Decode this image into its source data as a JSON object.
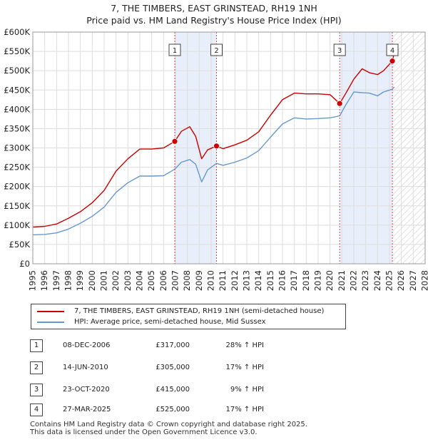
{
  "title_line1": "7, THE TIMBERS, EAST GRINSTEAD, RH19 1NH",
  "title_line2": "Price paid vs. HM Land Registry's House Price Index (HPI)",
  "colors": {
    "property": "#cc0000",
    "hpi": "#6699cc",
    "shade": "#e8effa",
    "marker_line": "#dd4444",
    "grid": "#dddddd"
  },
  "legend": {
    "property_label": "7, THE TIMBERS, EAST GRINSTEAD, RH19 1NH (semi-detached house)",
    "hpi_label": "HPI: Average price, semi-detached house, Mid Sussex"
  },
  "sales": [
    {
      "num": "1",
      "date": "08-DEC-2006",
      "price": "£317,000",
      "hpi": "28% ↑ HPI"
    },
    {
      "num": "2",
      "date": "14-JUN-2010",
      "price": "£305,000",
      "hpi": "17% ↑ HPI"
    },
    {
      "num": "3",
      "date": "23-OCT-2020",
      "price": "£415,000",
      "hpi": "9% ↑ HPI"
    },
    {
      "num": "4",
      "date": "27-MAR-2025",
      "price": "£525,000",
      "hpi": "17% ↑ HPI"
    }
  ],
  "footer_line1": "Contains HM Land Registry data © Crown copyright and database right 2025.",
  "footer_line2": "This data is licensed under the Open Government Licence v3.0.",
  "chart_data": {
    "type": "line",
    "title": "7, THE TIMBERS, EAST GRINSTEAD, RH19 1NH — Price paid vs. HM Land Registry's House Price Index (HPI)",
    "xlim": [
      1995,
      2028
    ],
    "ylim": [
      0,
      600000
    ],
    "x_ticks": [
      1995,
      1996,
      1997,
      1998,
      1999,
      2000,
      2001,
      2002,
      2003,
      2004,
      2005,
      2006,
      2007,
      2008,
      2009,
      2010,
      2011,
      2012,
      2013,
      2014,
      2015,
      2016,
      2017,
      2018,
      2019,
      2020,
      2021,
      2022,
      2023,
      2024,
      2025,
      2026,
      2027,
      2028
    ],
    "y_ticks": [
      {
        "value": 0,
        "label": "£0"
      },
      {
        "value": 50000,
        "label": "£50K"
      },
      {
        "value": 100000,
        "label": "£100K"
      },
      {
        "value": 150000,
        "label": "£150K"
      },
      {
        "value": 200000,
        "label": "£200K"
      },
      {
        "value": 250000,
        "label": "£250K"
      },
      {
        "value": 300000,
        "label": "£300K"
      },
      {
        "value": 350000,
        "label": "£350K"
      },
      {
        "value": 400000,
        "label": "£400K"
      },
      {
        "value": 450000,
        "label": "£450K"
      },
      {
        "value": 500000,
        "label": "£500K"
      },
      {
        "value": 550000,
        "label": "£550K"
      },
      {
        "value": 600000,
        "label": "£600K"
      }
    ],
    "grid": true,
    "shaded_ranges": [
      [
        2006.94,
        2010.45
      ],
      [
        2020.81,
        2025.24
      ]
    ],
    "hatched_from": 2025.24,
    "sale_markers": [
      {
        "label": "1",
        "x": 2006.94,
        "y": 317000
      },
      {
        "label": "2",
        "x": 2010.45,
        "y": 305000
      },
      {
        "label": "3",
        "x": 2020.81,
        "y": 415000
      },
      {
        "label": "4",
        "x": 2025.24,
        "y": 525000
      }
    ],
    "series": [
      {
        "name": "7, THE TIMBERS, EAST GRINSTEAD, RH19 1NH (semi-detached house)",
        "color": "#cc0000",
        "x": [
          1995,
          1996,
          1997,
          1998,
          1999,
          2000,
          2001,
          2002,
          2003,
          2004,
          2005,
          2006,
          2006.94,
          2007.5,
          2008.2,
          2008.7,
          2009.2,
          2009.7,
          2010.45,
          2011,
          2012,
          2013,
          2014,
          2015,
          2016,
          2017,
          2018,
          2019,
          2020,
          2020.81,
          2021.3,
          2022,
          2022.7,
          2023.3,
          2024,
          2024.5,
          2025.24,
          2025.4
        ],
        "y": [
          95000,
          97000,
          103000,
          118000,
          135000,
          158000,
          190000,
          240000,
          272000,
          297000,
          297000,
          300000,
          317000,
          343000,
          355000,
          330000,
          272000,
          295000,
          305000,
          298000,
          308000,
          320000,
          342000,
          385000,
          425000,
          442000,
          440000,
          440000,
          438000,
          415000,
          440000,
          478000,
          505000,
          495000,
          490000,
          500000,
          525000,
          545000
        ]
      },
      {
        "name": "HPI: Average price, semi-detached house, Mid Sussex",
        "color": "#6699cc",
        "x": [
          1995,
          1996,
          1997,
          1998,
          1999,
          2000,
          2001,
          2002,
          2003,
          2004,
          2005,
          2006,
          2006.94,
          2007.5,
          2008.2,
          2008.7,
          2009.2,
          2009.7,
          2010.45,
          2011,
          2012,
          2013,
          2014,
          2015,
          2016,
          2017,
          2018,
          2019,
          2020,
          2020.81,
          2021.3,
          2022,
          2022.7,
          2023.3,
          2024,
          2024.5,
          2025.24,
          2025.4
        ],
        "y": [
          75000,
          76000,
          80000,
          90000,
          105000,
          123000,
          147000,
          185000,
          210000,
          227000,
          227000,
          228000,
          245000,
          263000,
          270000,
          258000,
          212000,
          243000,
          260000,
          255000,
          263000,
          274000,
          293000,
          328000,
          362000,
          378000,
          375000,
          376000,
          378000,
          383000,
          410000,
          445000,
          443000,
          442000,
          435000,
          445000,
          452000,
          458000
        ]
      }
    ]
  }
}
